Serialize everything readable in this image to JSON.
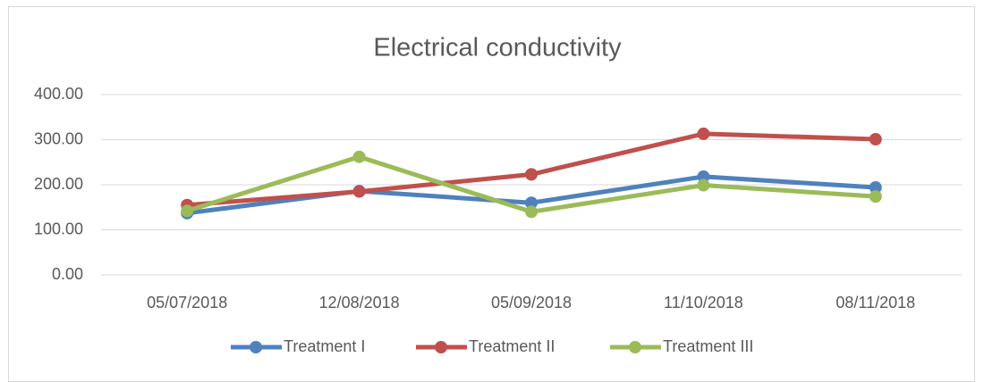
{
  "chart_data": {
    "type": "line",
    "title": "Electrical conductivity",
    "categories": [
      "05/07/2018",
      "12/08/2018",
      "05/09/2018",
      "11/10/2018",
      "08/11/2018"
    ],
    "series": [
      {
        "name": "Treatment I",
        "color": "#4f81bd",
        "values": [
          137,
          186,
          160,
          218,
          194
        ]
      },
      {
        "name": "Treatment II",
        "color": "#c0504d",
        "values": [
          155,
          185,
          223,
          313,
          301
        ]
      },
      {
        "name": "Treatment III",
        "color": "#9bbb59",
        "values": [
          142,
          262,
          140,
          199,
          174
        ]
      }
    ],
    "ylim": [
      0,
      400
    ],
    "yticks": [
      {
        "value": 0,
        "label": "0.00"
      },
      {
        "value": 100,
        "label": "100.00"
      },
      {
        "value": 200,
        "label": "200.00"
      },
      {
        "value": 300,
        "label": "300.00"
      },
      {
        "value": 400,
        "label": "400.00"
      }
    ],
    "grid": true,
    "legend": "bottom"
  }
}
